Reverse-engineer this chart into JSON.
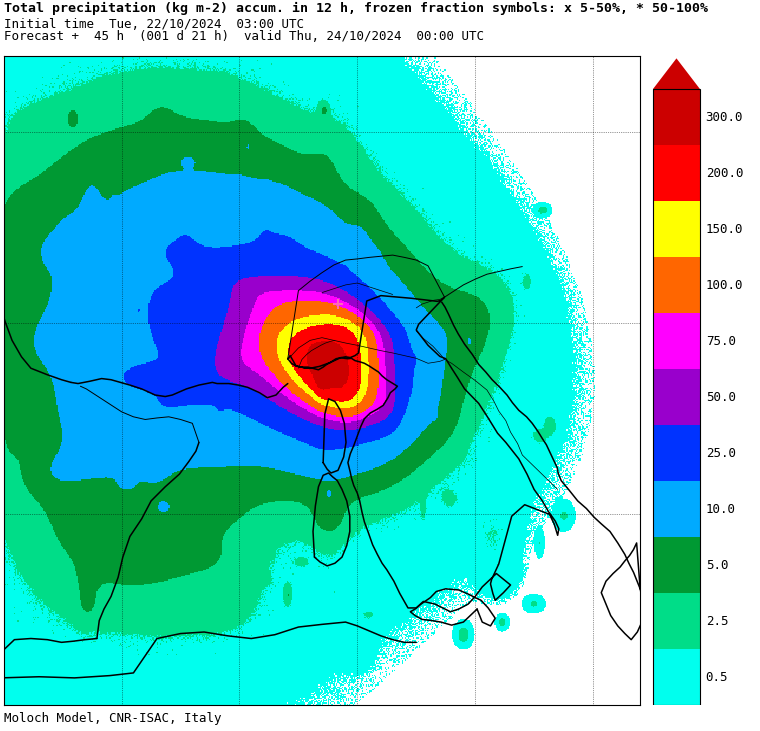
{
  "title_line1": "Total precipitation (kg m-2) accum. in 12 h, frozen fraction symbols: x 5-50%, * 50-100%",
  "title_line2": "Initial time  Tue, 22/10/2024  03:00 UTC",
  "title_line3": "Forecast +  45 h  (001 d 21 h)  valid Thu, 24/10/2024  00:00 UTC",
  "footer": "Moloch Model, CNR-ISAC, Italy",
  "colorbar_levels": [
    0.5,
    2.5,
    5.0,
    10.0,
    25.0,
    50.0,
    75.0,
    100.0,
    150.0,
    200.0,
    300.0
  ],
  "colorbar_colors": [
    "#00FFEE",
    "#00DD88",
    "#009933",
    "#00AAFF",
    "#0033FF",
    "#9900CC",
    "#FF00FF",
    "#FF6600",
    "#FFFF00",
    "#FF0000",
    "#CC0000"
  ],
  "colorbar_labels": [
    "0.5",
    "2.5",
    "5.0",
    "10.0",
    "25.0",
    "50.0",
    "75.0",
    "100.0",
    "150.0",
    "200.0",
    "300.0"
  ],
  "bg_color": "#FFFFFF",
  "map_bg": "#FFFFFF",
  "title_fontsize": 9.5,
  "footer_fontsize": 9,
  "fig_width": 7.6,
  "fig_height": 7.31,
  "lon_min": -5.0,
  "lon_max": 22.0,
  "lat_min": 35.0,
  "lat_max": 52.0,
  "pink_cross_lon": 9.2,
  "pink_cross_lat": 45.5
}
